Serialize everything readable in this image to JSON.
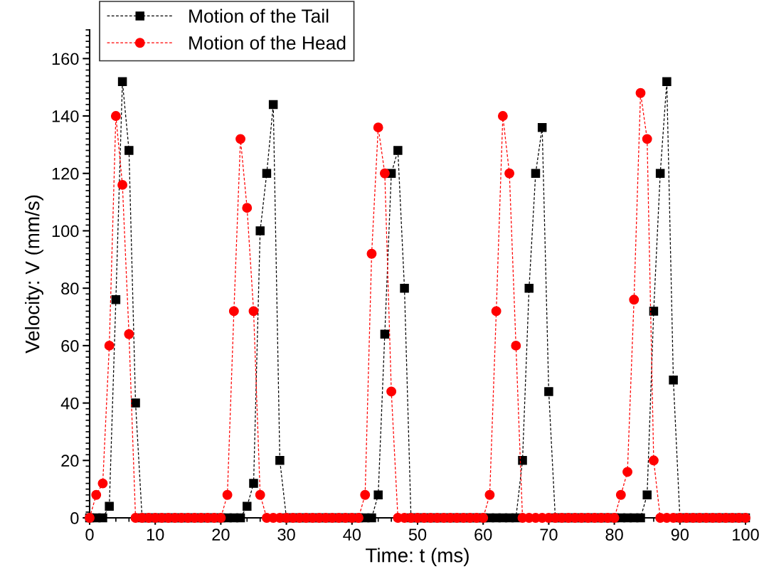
{
  "chart_data": {
    "type": "line",
    "xlabel": "Time: t (ms)",
    "ylabel": "Velocity: V (mm/s)",
    "x": [
      0,
      1,
      2,
      3,
      4,
      5,
      6,
      7,
      8,
      9,
      10,
      11,
      12,
      13,
      14,
      15,
      16,
      17,
      18,
      19,
      20,
      21,
      22,
      23,
      24,
      25,
      26,
      27,
      28,
      29,
      30,
      31,
      32,
      33,
      34,
      35,
      36,
      37,
      38,
      39,
      40,
      41,
      42,
      43,
      44,
      45,
      46,
      47,
      48,
      49,
      50,
      51,
      52,
      53,
      54,
      55,
      56,
      57,
      58,
      59,
      60,
      61,
      62,
      63,
      64,
      65,
      66,
      67,
      68,
      69,
      70,
      71,
      72,
      73,
      74,
      75,
      76,
      77,
      78,
      79,
      80,
      81,
      82,
      83,
      84,
      85,
      86,
      87,
      88,
      89,
      90,
      91,
      92,
      93,
      94,
      95,
      96,
      97,
      98,
      99,
      100
    ],
    "series": [
      {
        "name": "Motion of the Tail",
        "color": "#000000",
        "marker": "square",
        "values": [
          0,
          0,
          0,
          4,
          76,
          152,
          128,
          40,
          0,
          0,
          0,
          0,
          0,
          0,
          0,
          0,
          0,
          0,
          0,
          0,
          0,
          0,
          0,
          0,
          4,
          12,
          100,
          120,
          144,
          20,
          0,
          0,
          0,
          0,
          0,
          0,
          0,
          0,
          0,
          0,
          0,
          0,
          0,
          0,
          8,
          64,
          120,
          128,
          80,
          0,
          0,
          0,
          0,
          0,
          0,
          0,
          0,
          0,
          0,
          0,
          0,
          0,
          0,
          0,
          0,
          0,
          20,
          80,
          120,
          136,
          44,
          0,
          0,
          0,
          0,
          0,
          0,
          0,
          0,
          0,
          0,
          0,
          0,
          0,
          0,
          8,
          72,
          120,
          152,
          48,
          0,
          0,
          0,
          0,
          0,
          0,
          0,
          0,
          0,
          0,
          0
        ]
      },
      {
        "name": "Motion of the Head",
        "color": "#ff0000",
        "marker": "circle",
        "values": [
          0,
          8,
          12,
          60,
          140,
          116,
          64,
          0,
          0,
          0,
          0,
          0,
          0,
          0,
          0,
          0,
          0,
          0,
          0,
          0,
          0,
          8,
          72,
          132,
          108,
          72,
          8,
          0,
          0,
          0,
          0,
          0,
          0,
          0,
          0,
          0,
          0,
          0,
          0,
          0,
          0,
          0,
          8,
          92,
          136,
          120,
          44,
          0,
          0,
          0,
          0,
          0,
          0,
          0,
          0,
          0,
          0,
          0,
          0,
          0,
          0,
          8,
          72,
          140,
          120,
          60,
          0,
          0,
          0,
          0,
          0,
          0,
          0,
          0,
          0,
          0,
          0,
          0,
          0,
          0,
          0,
          8,
          16,
          76,
          148,
          132,
          20,
          0,
          0,
          0,
          0,
          0,
          0,
          0,
          0,
          0,
          0,
          0,
          0,
          0,
          0
        ]
      }
    ],
    "xlim": [
      0,
      100
    ],
    "xticks": [
      0,
      10,
      20,
      30,
      40,
      50,
      60,
      70,
      80,
      90,
      100
    ],
    "ylim": [
      0,
      170
    ],
    "yticks": [
      0,
      20,
      40,
      60,
      80,
      100,
      120,
      140,
      160
    ],
    "line_style": "dashed",
    "grid": false,
    "legend": "top left"
  }
}
